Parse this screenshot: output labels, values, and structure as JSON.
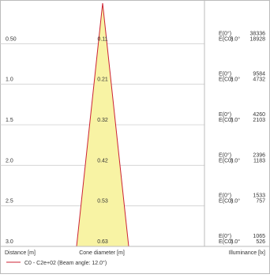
{
  "chart_data": {
    "type": "area",
    "title": "",
    "x_axis_label": "Distance [m]",
    "cone_axis_label": "Cone diameter [m]",
    "illuminance_axis_label": "Illuminance [lx]",
    "legend_label": "C0 - C2e+02 (Beam angle: 12.0°)",
    "angle_label": "6.0°",
    "row_label_center": "E(0°)",
    "row_label_c0": "E(C0)",
    "rows": [
      {
        "distance": "0.50",
        "cone": "0.11",
        "e_center": "38336",
        "e_c0": "18928"
      },
      {
        "distance": "1.0",
        "cone": "0.21",
        "e_center": "9584",
        "e_c0": "4732"
      },
      {
        "distance": "1.5",
        "cone": "0.32",
        "e_center": "4260",
        "e_c0": "2103"
      },
      {
        "distance": "2.0",
        "cone": "0.42",
        "e_center": "2396",
        "e_c0": "1183"
      },
      {
        "distance": "2.5",
        "cone": "0.53",
        "e_center": "1533",
        "e_c0": "757"
      },
      {
        "distance": "3.0",
        "cone": "0.63",
        "e_center": "1065",
        "e_c0": "526"
      }
    ],
    "max_distance": 3.0,
    "max_cone": 0.63,
    "colors": {
      "cone_fill": "#f8f3a4",
      "cone_edge": "#cc2233",
      "grid": "#cfcfcf",
      "frame": "#bbbbbb"
    }
  }
}
